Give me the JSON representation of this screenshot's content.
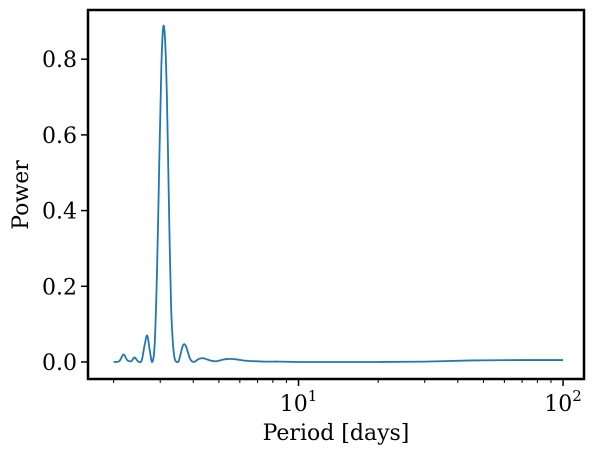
{
  "chart_data": {
    "type": "line",
    "xlabel": "Period [days]",
    "ylabel": "Power",
    "xscale": "log",
    "xlim": [
      1.6,
      120
    ],
    "ylim": [
      -0.045,
      0.93
    ],
    "x_ticks": [
      {
        "value": 10,
        "base": "10",
        "exp": "1"
      },
      {
        "value": 100,
        "base": "10",
        "exp": "2"
      }
    ],
    "y_ticks": [
      {
        "value": 0.0,
        "label": "0.0"
      },
      {
        "value": 0.2,
        "label": "0.2"
      },
      {
        "value": 0.4,
        "label": "0.4"
      },
      {
        "value": 0.6,
        "label": "0.6"
      },
      {
        "value": 0.8,
        "label": "0.8"
      }
    ],
    "grid": false,
    "line_color": "#1f77b4",
    "series": [
      {
        "x": [
          2.0,
          2.1,
          2.18,
          2.25,
          2.33,
          2.4,
          2.47,
          2.55,
          2.62,
          2.68,
          2.74,
          2.8,
          2.86,
          2.92,
          2.98,
          3.03,
          3.08,
          3.13,
          3.18,
          3.22,
          3.26,
          3.3,
          3.35,
          3.4,
          3.46,
          3.52,
          3.58,
          3.64,
          3.7,
          3.76,
          3.82,
          3.88,
          3.95,
          4.02,
          4.1,
          4.2,
          4.35,
          4.5,
          4.7,
          4.9,
          5.1,
          5.4,
          5.8,
          6.2,
          6.8,
          7.5,
          8.5,
          10,
          12,
          15,
          20,
          30,
          45,
          70,
          100
        ],
        "y": [
          0.0,
          0.002,
          0.02,
          0.005,
          0.002,
          0.012,
          0.002,
          0.003,
          0.045,
          0.07,
          0.03,
          0.0,
          0.05,
          0.25,
          0.55,
          0.78,
          0.885,
          0.85,
          0.7,
          0.5,
          0.3,
          0.14,
          0.05,
          0.01,
          0.0,
          0.002,
          0.02,
          0.04,
          0.047,
          0.04,
          0.025,
          0.01,
          0.002,
          0.0,
          0.003,
          0.008,
          0.01,
          0.007,
          0.003,
          0.002,
          0.005,
          0.008,
          0.007,
          0.004,
          0.002,
          0.001,
          0.001,
          0.0,
          0.0,
          0.0,
          0.0,
          0.001,
          0.004,
          0.005,
          0.005
        ]
      }
    ]
  }
}
